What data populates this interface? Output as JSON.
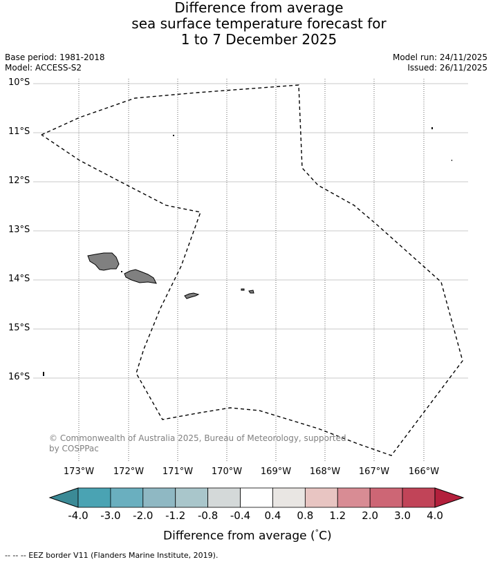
{
  "title": {
    "line1": "Difference from average",
    "line2": "sea surface temperature forecast for",
    "line3": "1 to 7 December 2025"
  },
  "meta": {
    "base_period": "Base period: 1981-2018",
    "model": "Model: ACCESS-S2",
    "model_run": "Model run: 24/11/2025",
    "issued": "Issued: 26/11/2025"
  },
  "map": {
    "lat_labels": [
      "10°S",
      "11°S",
      "12°S",
      "13°S",
      "14°S",
      "15°S",
      "16°S"
    ],
    "lon_labels": [
      "173°W",
      "172°W",
      "171°W",
      "170°W",
      "169°W",
      "168°W",
      "167°W",
      "166°W"
    ],
    "land_color": "#808080",
    "copyright": "© Commonwealth of Australia 2025, Bureau of Meteorology, supported",
    "copyright_line2": "by COSPPac"
  },
  "colorbar": {
    "title": "Difference from average (°C)",
    "title_prefix": "Difference from average (",
    "title_degree": "°",
    "title_unit": "C)",
    "tick_labels": [
      "-4.0",
      "-3.0",
      "-2.0",
      "-1.2",
      "-0.8",
      "-0.4",
      "0.4",
      "0.8",
      "1.2",
      "2.0",
      "3.0",
      "4.0"
    ],
    "colors": [
      "#3b8a96",
      "#4aa3b3",
      "#6aafbf",
      "#8fb8c3",
      "#a9c6cb",
      "#d4d9d9",
      "#ffffff",
      "#e9e6e3",
      "#e8c5c2",
      "#d88c94",
      "#cd6675",
      "#c14458",
      "#b3203c"
    ]
  },
  "footer": "--  --  -- EEZ border V11 (Flanders Marine Institute, 2019)."
}
